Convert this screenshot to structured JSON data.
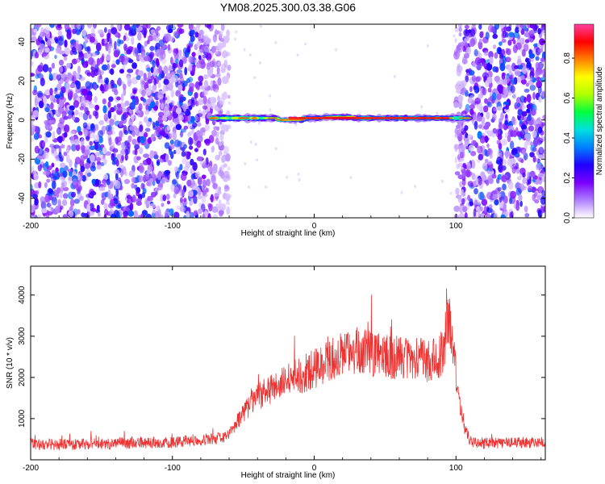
{
  "title": "YM08.2025.300.03.38.G06",
  "chart_data": [
    {
      "type": "heatmap",
      "title": "YM08.2025.300.03.38.G06",
      "xlabel": "Height of straight line (km)",
      "ylabel": "Frequency (Hz)",
      "xlim": [
        -200,
        163
      ],
      "ylim": [
        -50,
        49
      ],
      "xticks": [
        -200,
        -100,
        0,
        100
      ],
      "yticks": [
        -40,
        -20,
        0,
        20,
        40
      ],
      "colorbar": {
        "label": "Normalized spectral amplitude",
        "range": [
          0,
          0.97
        ],
        "ticks": [
          "0.0",
          "0.2",
          "0.4",
          "0.6",
          "0.8"
        ],
        "colors": [
          "#ffffff",
          "#b080ff",
          "#7a00ff",
          "#2000ff",
          "#0080ff",
          "#00e0e0",
          "#00ff40",
          "#b0ff00",
          "#ffff00",
          "#ff8000",
          "#ff0000",
          "#ff40a0"
        ]
      },
      "signal_band": {
        "frequency_hz": 1,
        "x_range_km": [
          -73,
          107
        ],
        "peak_amplitude": 0.9
      },
      "noise_region_km": [
        [
          -200,
          -60
        ],
        [
          100,
          163
        ]
      ]
    },
    {
      "type": "line",
      "xlabel": "Height of straight line (km)",
      "ylabel": "SNR (10 * v/v)",
      "xlim": [
        -200,
        163
      ],
      "ylim": [
        0,
        4700
      ],
      "xticks": [
        -200,
        -100,
        0,
        100
      ],
      "yticks": [
        1000,
        2000,
        3000,
        4000
      ],
      "grid": false,
      "series": [
        {
          "color": "#ee3333",
          "x": [
            -200,
            -180,
            -160,
            -140,
            -120,
            -100,
            -90,
            -80,
            -70,
            -60,
            -50,
            -40,
            -30,
            -20,
            -10,
            0,
            10,
            20,
            30,
            40,
            50,
            60,
            70,
            80,
            88,
            92,
            95,
            98,
            102,
            106,
            110,
            120,
            130,
            140,
            150,
            163
          ],
          "y": [
            380,
            370,
            380,
            400,
            410,
            420,
            460,
            480,
            500,
            600,
            1150,
            1550,
            1700,
            1900,
            2050,
            2200,
            2400,
            2550,
            2650,
            2600,
            2500,
            2500,
            2450,
            2400,
            2500,
            2800,
            3500,
            2600,
            1500,
            800,
            450,
            400,
            400,
            420,
            420,
            430
          ]
        }
      ]
    }
  ]
}
